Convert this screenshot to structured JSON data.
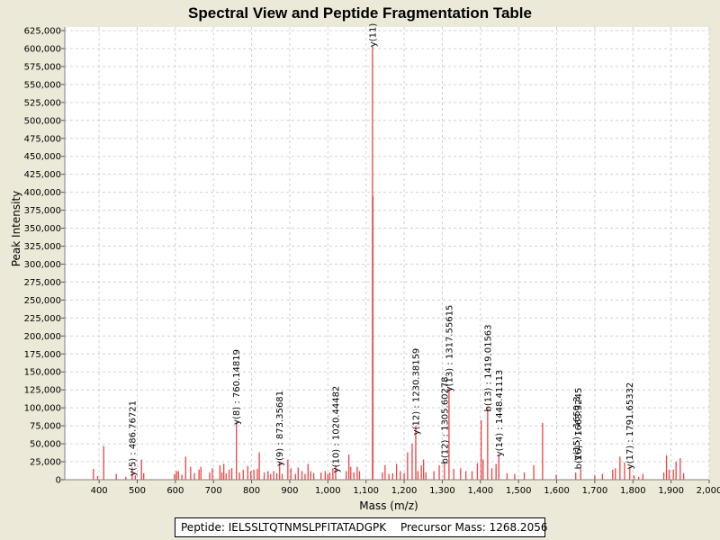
{
  "colors": {
    "background": "#ECE9D8",
    "plot_background": "#FFFFFF",
    "gridline": "#D0D0D0",
    "peak": "#F04040",
    "text": "#000000"
  },
  "footer": {
    "peptide_label": "Peptide: IELSSLTQTNMSLPFITATADGPK",
    "precursor_label": "Precursor Mass: 1268.2056"
  },
  "chart_data": {
    "type": "bar",
    "title": "Spectral View and Peptide Fragmentation Table",
    "xlabel": "Mass (m/z)",
    "ylabel": "Peak Intensity",
    "xlim": [
      310,
      2000
    ],
    "ylim": [
      0,
      630000
    ],
    "grid": true,
    "x_ticks": [
      400,
      500,
      600,
      700,
      800,
      900,
      1000,
      1100,
      1200,
      1300,
      1400,
      1500,
      1600,
      1700,
      1800,
      1900,
      2000
    ],
    "x_tick_labels": [
      "400",
      "500",
      "600",
      "700",
      "800",
      "900",
      "1,000",
      "1,100",
      "1,200",
      "1,300",
      "1,400",
      "1,500",
      "1,600",
      "1,700",
      "1,800",
      "1,900",
      "2,000"
    ],
    "y_ticks": [
      0,
      25000,
      50000,
      75000,
      100000,
      125000,
      150000,
      175000,
      200000,
      225000,
      250000,
      275000,
      300000,
      325000,
      350000,
      375000,
      400000,
      425000,
      450000,
      475000,
      500000,
      525000,
      550000,
      575000,
      600000,
      625000
    ],
    "y_tick_labels": [
      "0",
      "25,000",
      "50,000",
      "75,000",
      "100,000",
      "125,000",
      "150,000",
      "175,000",
      "200,000",
      "225,000",
      "250,000",
      "275,000",
      "300,000",
      "325,000",
      "350,000",
      "375,000",
      "400,000",
      "425,000",
      "450,000",
      "475,000",
      "500,000",
      "525,000",
      "550,000",
      "575,000",
      "600,000",
      "625,000"
    ],
    "peaks": [
      {
        "mz": 385,
        "intensity": 15000
      },
      {
        "mz": 396,
        "intensity": 5000
      },
      {
        "mz": 412,
        "intensity": 47000
      },
      {
        "mz": 445,
        "intensity": 8000
      },
      {
        "mz": 470,
        "intensity": 4000
      },
      {
        "mz": 486.8,
        "intensity": 17000
      },
      {
        "mz": 495,
        "intensity": 6000
      },
      {
        "mz": 511,
        "intensity": 28000
      },
      {
        "mz": 517,
        "intensity": 9000
      },
      {
        "mz": 598,
        "intensity": 8000
      },
      {
        "mz": 603,
        "intensity": 12000
      },
      {
        "mz": 608,
        "intensity": 12000
      },
      {
        "mz": 617,
        "intensity": 7000
      },
      {
        "mz": 627,
        "intensity": 32000
      },
      {
        "mz": 640,
        "intensity": 18000
      },
      {
        "mz": 650,
        "intensity": 9000
      },
      {
        "mz": 662,
        "intensity": 14000
      },
      {
        "mz": 667,
        "intensity": 18000
      },
      {
        "mz": 690,
        "intensity": 10000
      },
      {
        "mz": 697,
        "intensity": 16000
      },
      {
        "mz": 717,
        "intensity": 20000
      },
      {
        "mz": 722,
        "intensity": 10000
      },
      {
        "mz": 727,
        "intensity": 22000
      },
      {
        "mz": 733,
        "intensity": 9000
      },
      {
        "mz": 741,
        "intensity": 14000
      },
      {
        "mz": 748,
        "intensity": 16000
      },
      {
        "mz": 760.1,
        "intensity": 81000
      },
      {
        "mz": 768,
        "intensity": 10000
      },
      {
        "mz": 778,
        "intensity": 14000
      },
      {
        "mz": 790,
        "intensity": 19000
      },
      {
        "mz": 798,
        "intensity": 12000
      },
      {
        "mz": 806,
        "intensity": 14000
      },
      {
        "mz": 815,
        "intensity": 15000
      },
      {
        "mz": 820,
        "intensity": 38000
      },
      {
        "mz": 833,
        "intensity": 10000
      },
      {
        "mz": 843,
        "intensity": 12000
      },
      {
        "mz": 850,
        "intensity": 8000
      },
      {
        "mz": 858,
        "intensity": 12000
      },
      {
        "mz": 866,
        "intensity": 9000
      },
      {
        "mz": 873.4,
        "intensity": 25000
      },
      {
        "mz": 880,
        "intensity": 8000
      },
      {
        "mz": 895,
        "intensity": 28000
      },
      {
        "mz": 903,
        "intensity": 16000
      },
      {
        "mz": 915,
        "intensity": 8000
      },
      {
        "mz": 922,
        "intensity": 17000
      },
      {
        "mz": 932,
        "intensity": 12000
      },
      {
        "mz": 940,
        "intensity": 8000
      },
      {
        "mz": 948,
        "intensity": 22000
      },
      {
        "mz": 955,
        "intensity": 12000
      },
      {
        "mz": 963,
        "intensity": 9000
      },
      {
        "mz": 982,
        "intensity": 10000
      },
      {
        "mz": 993,
        "intensity": 12000
      },
      {
        "mz": 1000,
        "intensity": 8000
      },
      {
        "mz": 1005,
        "intensity": 10000
      },
      {
        "mz": 1013,
        "intensity": 16000
      },
      {
        "mz": 1020.4,
        "intensity": 20000
      },
      {
        "mz": 1048,
        "intensity": 12000
      },
      {
        "mz": 1055,
        "intensity": 35000
      },
      {
        "mz": 1060,
        "intensity": 18000
      },
      {
        "mz": 1068,
        "intensity": 10000
      },
      {
        "mz": 1077,
        "intensity": 18000
      },
      {
        "mz": 1083,
        "intensity": 12000
      },
      {
        "mz": 1117,
        "intensity": 603000
      },
      {
        "mz": 1118,
        "intensity": 395000
      },
      {
        "mz": 1143,
        "intensity": 10000
      },
      {
        "mz": 1150,
        "intensity": 20000
      },
      {
        "mz": 1160,
        "intensity": 8000
      },
      {
        "mz": 1170,
        "intensity": 9000
      },
      {
        "mz": 1180,
        "intensity": 22000
      },
      {
        "mz": 1190,
        "intensity": 12000
      },
      {
        "mz": 1200,
        "intensity": 9000
      },
      {
        "mz": 1209,
        "intensity": 38000
      },
      {
        "mz": 1221,
        "intensity": 50000
      },
      {
        "mz": 1230.4,
        "intensity": 75000
      },
      {
        "mz": 1236,
        "intensity": 12000
      },
      {
        "mz": 1245,
        "intensity": 20000
      },
      {
        "mz": 1251,
        "intensity": 28000
      },
      {
        "mz": 1257,
        "intensity": 10000
      },
      {
        "mz": 1278,
        "intensity": 12000
      },
      {
        "mz": 1292,
        "intensity": 20000
      },
      {
        "mz": 1305.6,
        "intensity": 25000
      },
      {
        "mz": 1317.6,
        "intensity": 127000
      },
      {
        "mz": 1330,
        "intensity": 15000
      },
      {
        "mz": 1348,
        "intensity": 16000
      },
      {
        "mz": 1362,
        "intensity": 12000
      },
      {
        "mz": 1378,
        "intensity": 12000
      },
      {
        "mz": 1392,
        "intensity": 23000
      },
      {
        "mz": 1402,
        "intensity": 83000
      },
      {
        "mz": 1407,
        "intensity": 28000
      },
      {
        "mz": 1419.0,
        "intensity": 100000
      },
      {
        "mz": 1430,
        "intensity": 16000
      },
      {
        "mz": 1441,
        "intensity": 22000
      },
      {
        "mz": 1448.4,
        "intensity": 35000
      },
      {
        "mz": 1470,
        "intensity": 9000
      },
      {
        "mz": 1490,
        "intensity": 8000
      },
      {
        "mz": 1515,
        "intensity": 10000
      },
      {
        "mz": 1540,
        "intensity": 20000
      },
      {
        "mz": 1563,
        "intensity": 79000
      },
      {
        "mz": 1599,
        "intensity": 7000
      },
      {
        "mz": 1650,
        "intensity": 10000
      },
      {
        "mz": 1663,
        "intensity": 15000
      },
      {
        "mz": 1700,
        "intensity": 6000
      },
      {
        "mz": 1720,
        "intensity": 8000
      },
      {
        "mz": 1747,
        "intensity": 14000
      },
      {
        "mz": 1754,
        "intensity": 16000
      },
      {
        "mz": 1766,
        "intensity": 32000
      },
      {
        "mz": 1778,
        "intensity": 24000
      },
      {
        "mz": 1791.7,
        "intensity": 18000
      },
      {
        "mz": 1803,
        "intensity": 6000
      },
      {
        "mz": 1815,
        "intensity": 4000
      },
      {
        "mz": 1826,
        "intensity": 8000
      },
      {
        "mz": 1881,
        "intensity": 10000
      },
      {
        "mz": 1888,
        "intensity": 34000
      },
      {
        "mz": 1895,
        "intensity": 14000
      },
      {
        "mz": 1906,
        "intensity": 14000
      },
      {
        "mz": 1913,
        "intensity": 25000
      },
      {
        "mz": 1924,
        "intensity": 30000
      },
      {
        "mz": 1933,
        "intensity": 9000
      }
    ],
    "annotations": [
      {
        "mz": 486.8,
        "label": "y(5) : 486.76721",
        "label_top": 450,
        "label_bottom": 524
      },
      {
        "mz": 760.1,
        "label": "y(8) : 760.14819",
        "label_top": 390,
        "label_bottom": 470
      },
      {
        "mz": 873.4,
        "label": "y(9) : 873.35681",
        "label_top": 434,
        "label_bottom": 518
      },
      {
        "mz": 1020.4,
        "label": "y(10) : 1020.44482",
        "label_top": 432,
        "label_bottom": 522
      },
      {
        "mz": 1117,
        "label": "y(11)",
        "label_top": 28,
        "label_bottom": 50
      },
      {
        "mz": 1230.4,
        "label": "y(12) : 1230.38159",
        "label_top": 390,
        "label_bottom": 480
      },
      {
        "mz": 1305.6,
        "label": "b(12) : 1305.60278",
        "label_top": 422,
        "label_bottom": 512
      },
      {
        "mz": 1317.6,
        "label": "y(13) : 1317.55615",
        "label_top": 342,
        "label_bottom": 432
      },
      {
        "mz": 1419.0,
        "label": "b(13) : 1419.01563",
        "label_top": 364,
        "label_bottom": 454
      },
      {
        "mz": 1448.4,
        "label": "y(14) : 1448.41113",
        "label_top": 414,
        "label_bottom": 504
      },
      {
        "mz": 1651.5,
        "label": "y(15) : 1650.3",
        "label_top": 430,
        "label_bottom": 522
      },
      {
        "mz": 1656,
        "label": "b(16) : 1663.3245",
        "label_top": 430,
        "label_bottom": 522
      },
      {
        "mz": 1791.7,
        "label": "y(17) : 1791.65332",
        "label_top": 428,
        "label_bottom": 518
      }
    ]
  }
}
